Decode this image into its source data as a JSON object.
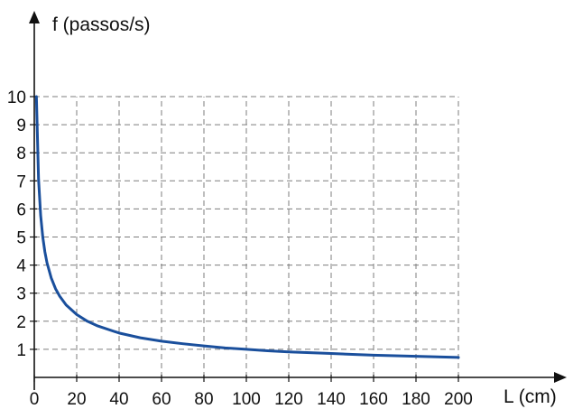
{
  "chart_data": {
    "type": "line",
    "title": "",
    "xlabel": "L (cm)",
    "ylabel": "f (passos/s)",
    "xlim": [
      0,
      200
    ],
    "ylim": [
      0,
      10
    ],
    "x_ticks": [
      0,
      20,
      40,
      60,
      80,
      100,
      120,
      140,
      160,
      180,
      200
    ],
    "y_ticks": [
      1,
      2,
      3,
      4,
      5,
      6,
      7,
      8,
      9,
      10
    ],
    "grid": true,
    "legend": "none",
    "series": [
      {
        "color": "#1a4f9c",
        "x": [
          1,
          2,
          3,
          4,
          5,
          6,
          8,
          10,
          12,
          15,
          20,
          25,
          30,
          40,
          50,
          60,
          70,
          80,
          90,
          100,
          110,
          120,
          130,
          140,
          150,
          160,
          170,
          180,
          190,
          200
        ],
        "y": [
          10,
          7.07,
          5.77,
          5,
          4.47,
          4.08,
          3.54,
          3.16,
          2.89,
          2.58,
          2.24,
          2,
          1.83,
          1.58,
          1.41,
          1.29,
          1.2,
          1.12,
          1.05,
          1,
          0.95,
          0.91,
          0.88,
          0.85,
          0.82,
          0.79,
          0.77,
          0.75,
          0.73,
          0.71
        ]
      }
    ]
  }
}
